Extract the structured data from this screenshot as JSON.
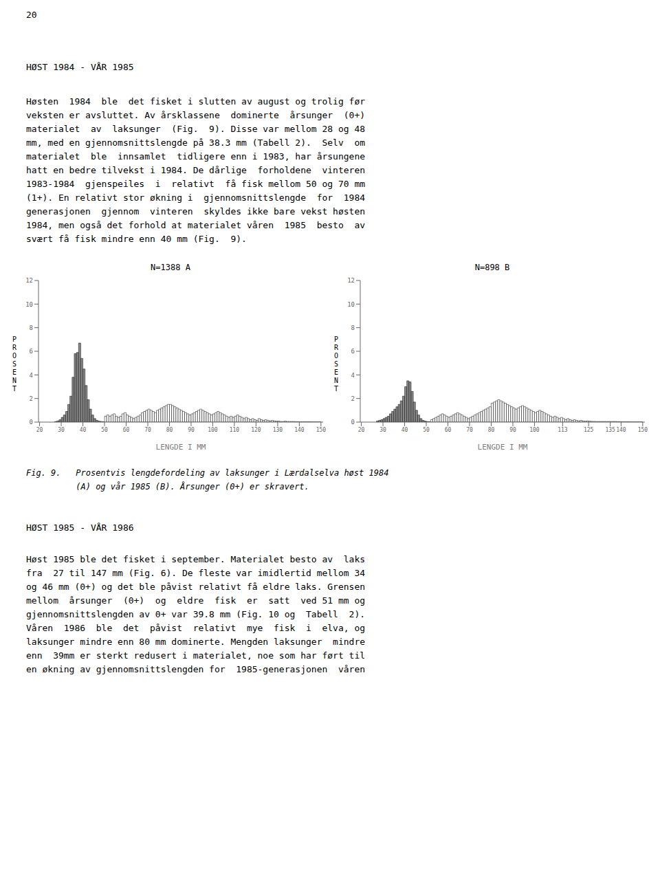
{
  "page_number": "20",
  "heading1": "HØST 1984 - VÅR 1985",
  "paragraph1_lines": [
    "Høsten  1984  ble  det fisket i slutten av august og trolig før",
    "veksten er avsluttet. Av årsklassene  dominerte  årsunger  (0+)",
    "materialet  av  laksunger  (Fig.  9). Disse var mellom 28 og 48",
    "mm, med en gjennomsnittslengde på 38.3 mm (Tabell 2).  Selv  om",
    "materialet  ble  innsamlet  tidligere enn i 1983, har årsungene",
    "hatt en bedre tilvekst i 1984. De dårlige  forholdene  vinteren",
    "1983-1984  gjenspeiles  i  relativt  få fisk mellom 50 og 70 mm",
    "(1+). En relativt stor økning i  gjennomsnittslengde  for  1984",
    "generasjonen  gjennom  vinteren  skyldes ikke bare vekst høsten",
    "1984, men også det forhold at materialet våren  1985  besto  av",
    "svært få fisk mindre enn 40 mm (Fig.  9)."
  ],
  "fig_caption_line1": "Fig. 9.   Prosentvis lengdefordeling av laksunger i Lærdalselva høst 1984",
  "fig_caption_line2": "          (A) og vår 1985 (B). Årsunger (0+) er skravert.",
  "heading2": "HØST 1985 - VÅR 1986",
  "paragraph2_lines": [
    "Høst 1985 ble det fisket i september. Materialet besto av  laks",
    "fra  27 til 147 mm (Fig. 6). De fleste var imidlertid mellom 34",
    "og 46 mm (0+) og det ble påvist relativt få eldre laks. Grensen",
    "mellom  årsunger  (0+)  og  eldre  fisk  er  satt  ved 51 mm og",
    "gjennomsnittslengden av 0+ var 39.8 mm (Fig. 10 og  Tabell  2).",
    "Våren  1986  ble  det  påvist  relativt  mye  fisk  i  elva, og",
    "laksunger mindre enn 80 mm dominerte. Mengden laksunger  mindre",
    "enn  39mm er sterkt redusert i materialet, noe som har ført til",
    "en økning av gjennomsnittslengden for  1985-generasjonen  våren"
  ],
  "chart_data": [
    {
      "type": "histogram",
      "title": "N=1388 A",
      "xlabel": "LENGDE I MM",
      "ylabel": "P\nR\nO\nS\nE\nN\nT",
      "xlim": [
        19.5,
        151
      ],
      "xticks": [
        20,
        30,
        40,
        50,
        60,
        70,
        80,
        90,
        100,
        110,
        120,
        130,
        140,
        150
      ],
      "ylim": [
        0,
        12
      ],
      "yticks": [
        0,
        2,
        4,
        6,
        8,
        10,
        12
      ],
      "grid": false,
      "series": [
        {
          "color": "#888888",
          "bins": [
            27,
            28,
            29,
            30,
            31,
            32,
            33,
            34,
            35,
            36,
            37,
            38,
            39,
            40,
            41,
            42,
            43,
            44,
            45,
            46,
            47,
            48,
            49,
            50
          ],
          "values": [
            0.05,
            0.1,
            0.2,
            0.4,
            0.6,
            0.9,
            1.5,
            2.2,
            3.8,
            5.8,
            5.9,
            6.7,
            5.4,
            4.5,
            3.1,
            1.9,
            1.1,
            0.6,
            0.3,
            0.15,
            0.08,
            0.05,
            0.03
          ]
        },
        {
          "color": "#ffffff",
          "bins": [
            50,
            51,
            52,
            53,
            54,
            55,
            56,
            57,
            58,
            59,
            60,
            61,
            62,
            63,
            64,
            65,
            66,
            67,
            68,
            69,
            70,
            71,
            72,
            73,
            74,
            75,
            76,
            77,
            78,
            79,
            80,
            81,
            82,
            83,
            84,
            85,
            86,
            87,
            88,
            89,
            90,
            91,
            92,
            93,
            94,
            95,
            96,
            97,
            98,
            99,
            100,
            101,
            102,
            103,
            104,
            105,
            106,
            107,
            108,
            109,
            110,
            111,
            112,
            113,
            114,
            115,
            116,
            117,
            118,
            119,
            120,
            121,
            122,
            123,
            124,
            125,
            126,
            127,
            128,
            129,
            130,
            131,
            132,
            133,
            134,
            135,
            136,
            137,
            138,
            139,
            140,
            141,
            142,
            143,
            144,
            145,
            146,
            147,
            148,
            149,
            150
          ],
          "values": [
            0.5,
            0.6,
            0.5,
            0.6,
            0.7,
            0.5,
            0.4,
            0.5,
            0.7,
            0.8,
            0.6,
            0.5,
            0.4,
            0.3,
            0.4,
            0.5,
            0.6,
            0.8,
            0.9,
            1.0,
            1.1,
            1.0,
            0.9,
            0.8,
            1.0,
            1.1,
            1.2,
            1.3,
            1.4,
            1.5,
            1.5,
            1.4,
            1.3,
            1.2,
            1.1,
            1.0,
            0.9,
            0.8,
            0.7,
            0.6,
            0.7,
            0.8,
            0.9,
            1.0,
            1.1,
            1.0,
            0.9,
            0.8,
            0.7,
            0.6,
            0.7,
            0.8,
            0.9,
            0.8,
            0.7,
            0.6,
            0.5,
            0.4,
            0.5,
            0.4,
            0.5,
            0.6,
            0.5,
            0.4,
            0.3,
            0.4,
            0.3,
            0.2,
            0.3,
            0.2,
            0.15,
            0.3,
            0.2,
            0.15,
            0.2,
            0.15,
            0.1,
            0.15,
            0.1,
            0.08,
            0.08,
            0.05,
            0.05,
            0.08,
            0.05,
            0.05,
            0.05,
            0.05,
            0.04,
            0.04,
            0.03,
            0.03,
            0.03,
            0.03,
            0.03,
            0.03,
            0.02,
            0.02,
            0.02,
            0.02
          ]
        }
      ]
    },
    {
      "type": "histogram",
      "title": "N=898 B",
      "xlabel": "LENGDE I MM",
      "ylabel": "P\nR\nO\nS\nE\nN\nT",
      "xlim": [
        19.5,
        151
      ],
      "xticks": [
        20,
        30,
        40,
        50,
        60,
        70,
        80,
        90,
        100,
        113,
        125,
        135,
        140,
        150
      ],
      "ylim": [
        0,
        12
      ],
      "yticks": [
        0,
        2,
        4,
        6,
        8,
        10,
        12
      ],
      "grid": false,
      "series": [
        {
          "color": "#888888",
          "bins": [
            27,
            28,
            29,
            30,
            31,
            32,
            33,
            34,
            35,
            36,
            37,
            38,
            39,
            40,
            41,
            42,
            43,
            44,
            45,
            46,
            47,
            48,
            49,
            50,
            51,
            52
          ],
          "values": [
            0.1,
            0.15,
            0.2,
            0.3,
            0.4,
            0.5,
            0.7,
            0.9,
            1.1,
            1.3,
            1.5,
            1.8,
            2.2,
            3.0,
            3.5,
            3.4,
            2.6,
            1.7,
            1.0,
            0.6,
            0.3,
            0.15,
            0.08,
            0.05,
            0.03
          ]
        },
        {
          "color": "#ffffff",
          "bins": [
            52,
            53,
            54,
            55,
            56,
            57,
            58,
            59,
            60,
            61,
            62,
            63,
            64,
            65,
            66,
            67,
            68,
            69,
            70,
            71,
            72,
            73,
            74,
            75,
            76,
            77,
            78,
            79,
            80,
            81,
            82,
            83,
            84,
            85,
            86,
            87,
            88,
            89,
            90,
            91,
            92,
            93,
            94,
            95,
            96,
            97,
            98,
            99,
            100,
            101,
            102,
            103,
            104,
            105,
            106,
            107,
            108,
            109,
            110,
            111,
            112,
            113,
            114,
            115,
            116,
            117,
            118,
            119,
            120,
            121,
            122,
            123,
            124,
            125,
            126,
            127,
            128,
            129,
            130,
            131,
            132,
            133,
            134,
            135,
            136,
            137,
            138,
            139,
            140,
            141,
            142,
            143,
            144,
            145,
            146,
            147,
            148,
            149,
            150
          ],
          "values": [
            0.2,
            0.3,
            0.4,
            0.5,
            0.6,
            0.7,
            0.6,
            0.5,
            0.4,
            0.5,
            0.6,
            0.7,
            0.8,
            0.7,
            0.6,
            0.5,
            0.4,
            0.3,
            0.4,
            0.5,
            0.6,
            0.7,
            0.8,
            0.9,
            1.0,
            1.1,
            1.2,
            1.3,
            1.6,
            1.7,
            1.8,
            1.9,
            1.8,
            1.7,
            1.6,
            1.5,
            1.4,
            1.3,
            1.2,
            1.1,
            1.2,
            1.3,
            1.4,
            1.3,
            1.2,
            1.1,
            1.0,
            0.9,
            0.8,
            0.9,
            1.0,
            0.9,
            0.8,
            0.7,
            0.6,
            0.5,
            0.4,
            0.5,
            0.4,
            0.3,
            0.4,
            0.3,
            0.2,
            0.3,
            0.2,
            0.15,
            0.2,
            0.15,
            0.1,
            0.15,
            0.1,
            0.08,
            0.1,
            0.08,
            0.06,
            0.06,
            0.05,
            0.05,
            0.05,
            0.05,
            0.05,
            0.05,
            0.05,
            0.05,
            0.05,
            0.05,
            0.04,
            0.04,
            0.03,
            0.03,
            0.03,
            0.03,
            0.02,
            0.02,
            0.02,
            0.02,
            0.02,
            0.02
          ]
        }
      ]
    }
  ]
}
